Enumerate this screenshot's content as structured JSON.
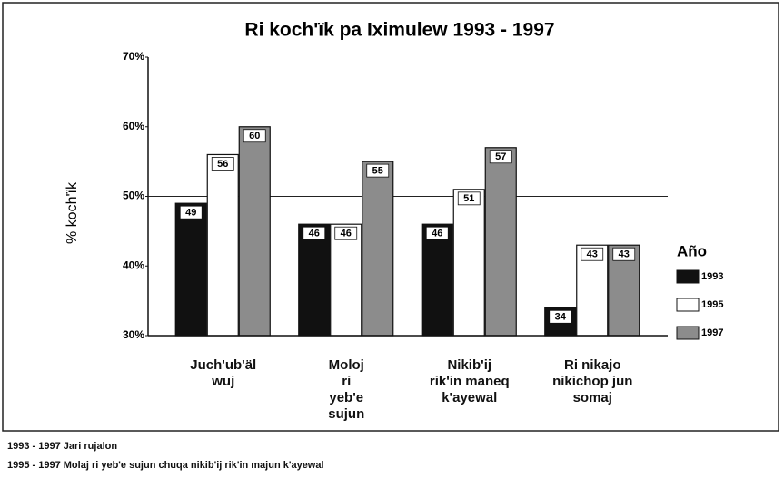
{
  "chart_data": {
    "type": "bar",
    "title": "Ri koch'ïk pa Iximulew 1993 - 1997",
    "y_label": "% koch'ïk",
    "categories": [
      "Juch'ub'äl\nwuj",
      "Moloj\nri\nyeb'e\nsujun",
      "Nikib'ij\nrik'in maneq\nk'ayewal",
      "Ri nikajo\nnikichop jun\nsomaj"
    ],
    "series": [
      {
        "name": "1993",
        "color": "#111111",
        "values": [
          49,
          46,
          46,
          34
        ]
      },
      {
        "name": "1995",
        "color": "#ffffff",
        "values": [
          56,
          46,
          51,
          43
        ]
      },
      {
        "name": "1997",
        "color": "#8c8c8c",
        "values": [
          60,
          55,
          57,
          43
        ]
      }
    ],
    "ylim": [
      30,
      70
    ],
    "yticks": [
      {
        "value": 30,
        "label": "30%"
      },
      {
        "value": 40,
        "label": "40%"
      },
      {
        "value": 50,
        "label": "50%"
      },
      {
        "value": 60,
        "label": "60%"
      },
      {
        "value": 70,
        "label": "70%"
      }
    ],
    "reference_line": 50,
    "legend_title": "Año",
    "legend": "right",
    "notes": [
      "1993 - 1997  Jari rujalon",
      "1995 - 1997  Molaj ri yeb'e sujun chuqa nikib'ij rik'in majun k'ayewal"
    ]
  }
}
